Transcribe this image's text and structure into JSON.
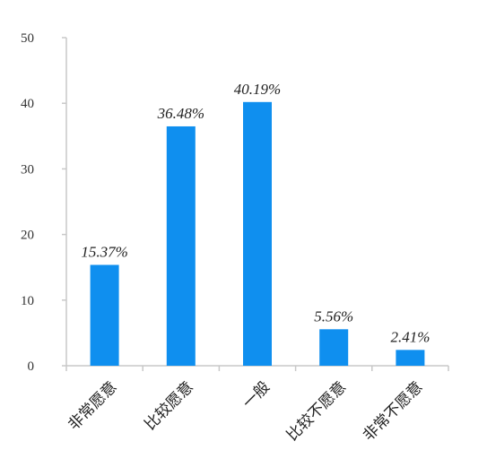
{
  "chart_data": {
    "type": "bar",
    "title": "",
    "xlabel": "",
    "ylabel": "",
    "categories": [
      "非常愿意",
      "比较愿意",
      "一般",
      "比较不愿意",
      "非常不愿意"
    ],
    "values": [
      15.37,
      36.48,
      40.19,
      5.56,
      2.41
    ],
    "data_labels": [
      "15.37%",
      "36.48%",
      "40.19%",
      "5.56%",
      "2.41%"
    ],
    "ylim": [
      0,
      50
    ],
    "yticks": [
      "0",
      "10",
      "20",
      "30",
      "40",
      "50"
    ],
    "grid": false,
    "legend": "none",
    "bar_color": "#0f8fef"
  }
}
